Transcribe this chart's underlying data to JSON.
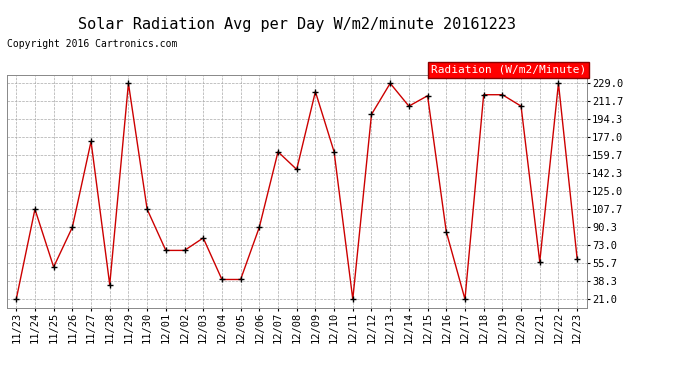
{
  "title": "Solar Radiation Avg per Day W/m2/minute 20161223",
  "copyright": "Copyright 2016 Cartronics.com",
  "legend_label": "Radiation (W/m2/Minute)",
  "dates": [
    "11/23",
    "11/24",
    "11/25",
    "11/26",
    "11/27",
    "11/28",
    "11/29",
    "11/30",
    "12/01",
    "12/02",
    "12/03",
    "12/04",
    "12/05",
    "12/06",
    "12/07",
    "12/08",
    "12/09",
    "12/10",
    "12/11",
    "12/12",
    "12/13",
    "12/14",
    "12/15",
    "12/16",
    "12/17",
    "12/18",
    "12/19",
    "12/20",
    "12/21",
    "12/22",
    "12/23"
  ],
  "values": [
    21.0,
    107.7,
    52.0,
    90.3,
    173.0,
    35.0,
    229.0,
    107.7,
    68.0,
    68.0,
    80.0,
    40.0,
    40.0,
    90.3,
    163.0,
    146.0,
    221.0,
    163.0,
    21.0,
    199.0,
    229.0,
    207.0,
    217.0,
    86.0,
    21.0,
    218.0,
    218.0,
    207.0,
    57.0,
    229.0,
    60.0
  ],
  "yticks": [
    21.0,
    38.3,
    55.7,
    73.0,
    90.3,
    107.7,
    125.0,
    142.3,
    159.7,
    177.0,
    194.3,
    211.7,
    229.0
  ],
  "ymin": 21.0,
  "ymax": 229.0,
  "line_color": "#cc0000",
  "marker_color": "#000000",
  "bg_color": "#ffffff",
  "plot_bg_color": "#ffffff",
  "grid_color": "#aaaaaa",
  "title_fontsize": 11,
  "copyright_fontsize": 7,
  "tick_fontsize": 7.5,
  "legend_fontsize": 8
}
